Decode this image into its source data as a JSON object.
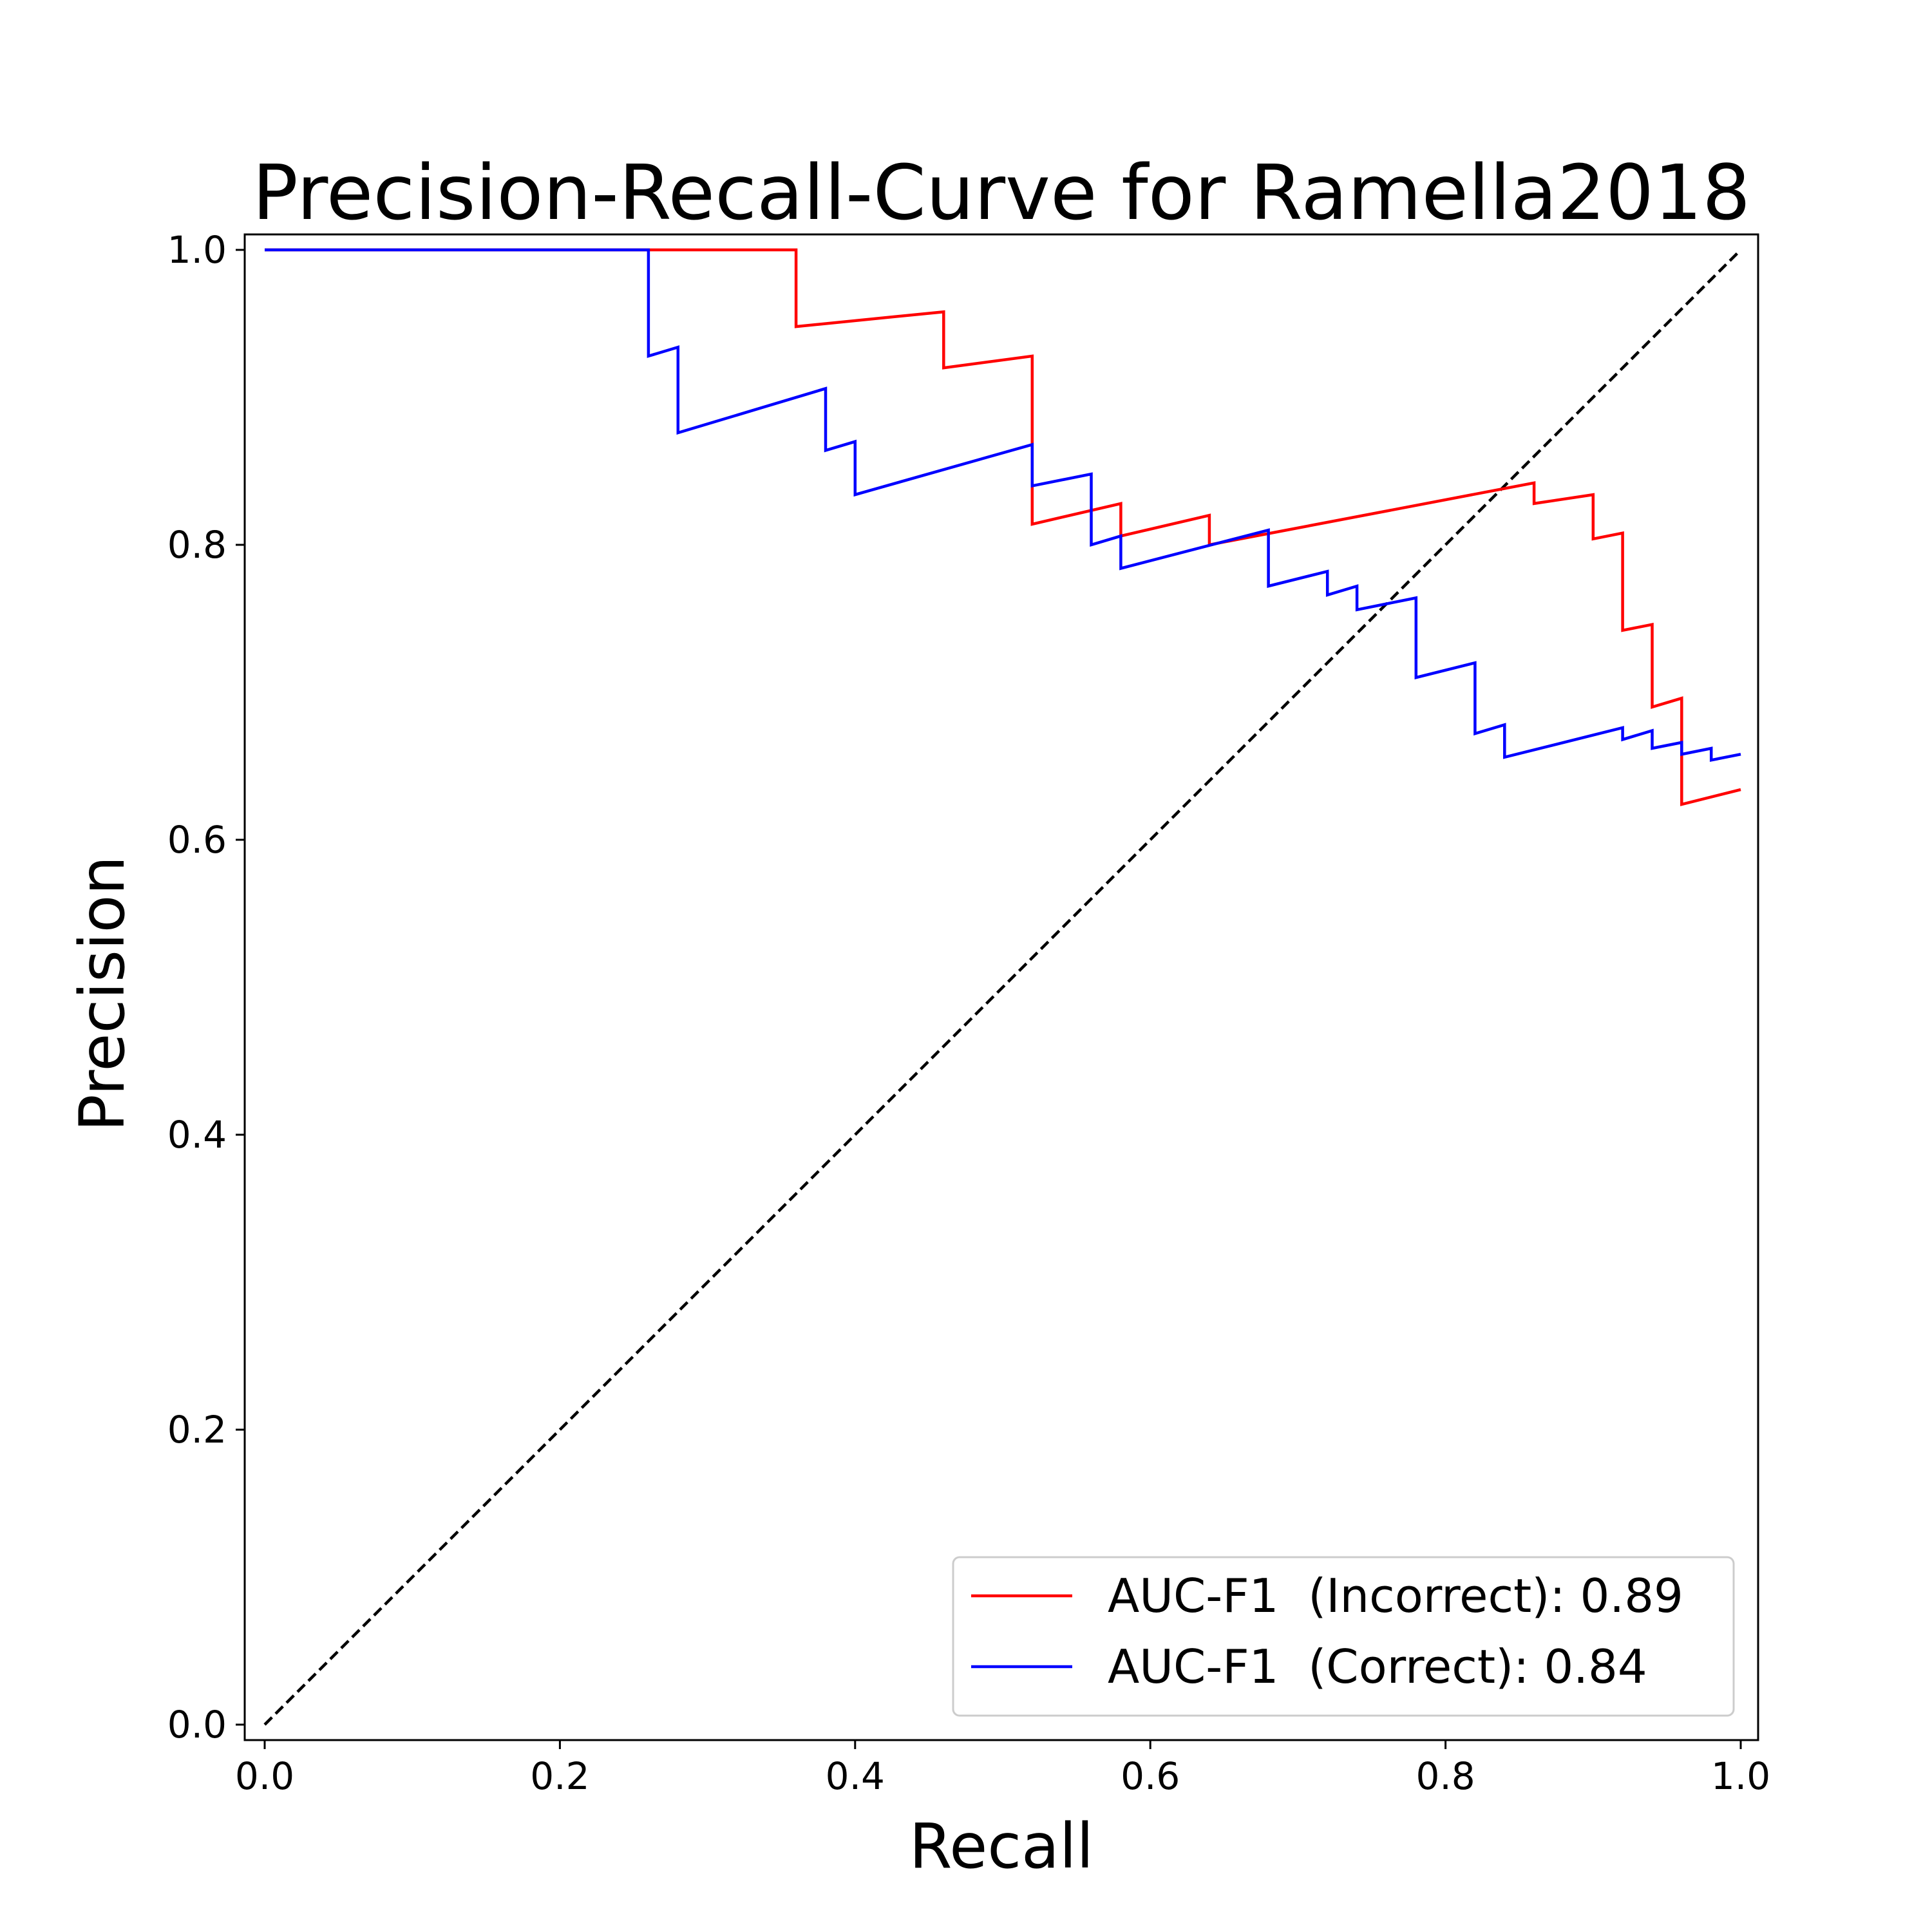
{
  "chart_data": {
    "type": "line",
    "title": "Precision-Recall-Curve for Ramella2018",
    "xlabel": "Recall",
    "ylabel": "Precision",
    "xlim": [
      0.0,
      1.0
    ],
    "ylim": [
      0.0,
      1.0
    ],
    "xticks": [
      "0.0",
      "0.2",
      "0.4",
      "0.6",
      "0.8",
      "1.0"
    ],
    "yticks": [
      "0.0",
      "0.2",
      "0.4",
      "0.6",
      "0.8",
      "1.0"
    ],
    "grid": false,
    "legend_position": "lower-right",
    "series": [
      {
        "name": "AUC-F1  (Incorrect): 0.89",
        "color": "#ff0000",
        "style": "solid",
        "x": [
          0.0,
          0.36,
          0.36,
          0.46,
          0.46,
          0.52,
          0.52,
          0.58,
          0.58,
          0.64,
          0.64,
          0.86,
          0.86,
          0.9,
          0.9,
          0.92,
          0.92,
          0.94,
          0.94,
          0.96,
          0.96,
          1.0
        ],
        "y": [
          1.0,
          1.0,
          0.948,
          0.958,
          0.92,
          0.928,
          0.814,
          0.828,
          0.806,
          0.82,
          0.8,
          0.842,
          0.828,
          0.834,
          0.804,
          0.808,
          0.742,
          0.746,
          0.69,
          0.696,
          0.624,
          0.634
        ]
      },
      {
        "name": "AUC-F1  (Correct): 0.84",
        "color": "#0000ff",
        "style": "solid",
        "x": [
          0.0,
          0.26,
          0.26,
          0.28,
          0.28,
          0.38,
          0.38,
          0.4,
          0.4,
          0.52,
          0.52,
          0.56,
          0.56,
          0.58,
          0.58,
          0.68,
          0.68,
          0.72,
          0.72,
          0.74,
          0.74,
          0.78,
          0.78,
          0.82,
          0.82,
          0.84,
          0.84,
          0.92,
          0.92,
          0.94,
          0.94,
          0.96,
          0.96,
          0.98,
          0.98,
          1.0
        ],
        "y": [
          1.0,
          1.0,
          0.928,
          0.934,
          0.876,
          0.906,
          0.864,
          0.87,
          0.834,
          0.868,
          0.84,
          0.848,
          0.8,
          0.806,
          0.784,
          0.81,
          0.772,
          0.782,
          0.766,
          0.772,
          0.756,
          0.764,
          0.71,
          0.72,
          0.672,
          0.678,
          0.656,
          0.676,
          0.668,
          0.674,
          0.662,
          0.666,
          0.658,
          0.662,
          0.654,
          0.658
        ]
      },
      {
        "color": "#000000",
        "style": "dashed",
        "x": [
          0.0,
          1.0
        ],
        "y": [
          0.0,
          1.0
        ]
      }
    ]
  }
}
